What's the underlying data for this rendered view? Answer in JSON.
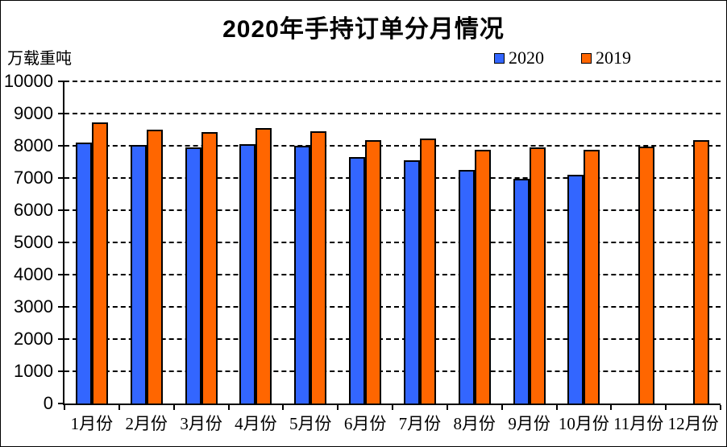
{
  "page": {
    "title": "2020年手持订单分月情况",
    "unit_label": "万载重吨"
  },
  "legend": [
    {
      "label": "2020",
      "color": "#3366FF"
    },
    {
      "label": "2019",
      "color": "#FF6600"
    }
  ],
  "colors": {
    "series_2020": "#3366FF",
    "series_2019": "#FF6600",
    "axis": "#000000",
    "grid": "#000000",
    "background": "#FFFFFF"
  },
  "chart_data": {
    "type": "bar",
    "title": "2020年手持订单分月情况",
    "xlabel": "",
    "ylabel": "万载重吨",
    "categories": [
      "1月份",
      "2月份",
      "3月份",
      "4月份",
      "5月份",
      "6月份",
      "7月份",
      "8月份",
      "9月份",
      "10月份",
      "11月份",
      "12月份"
    ],
    "series": [
      {
        "name": "2020",
        "color": "#3366FF",
        "values": [
          8100,
          8030,
          7950,
          8040,
          7990,
          7650,
          7540,
          7250,
          6980,
          7090,
          null,
          null
        ]
      },
      {
        "name": "2019",
        "color": "#FF6600",
        "values": [
          8720,
          8510,
          8430,
          8560,
          8440,
          8180,
          8220,
          7880,
          7940,
          7870,
          7980,
          8170
        ]
      }
    ],
    "ylim": [
      0,
      10000
    ],
    "ytick_step": 1000,
    "yticks": [
      0,
      1000,
      2000,
      3000,
      4000,
      5000,
      6000,
      7000,
      8000,
      9000,
      10000
    ],
    "grid": "horizontal-dashed",
    "legend_position": "top"
  }
}
